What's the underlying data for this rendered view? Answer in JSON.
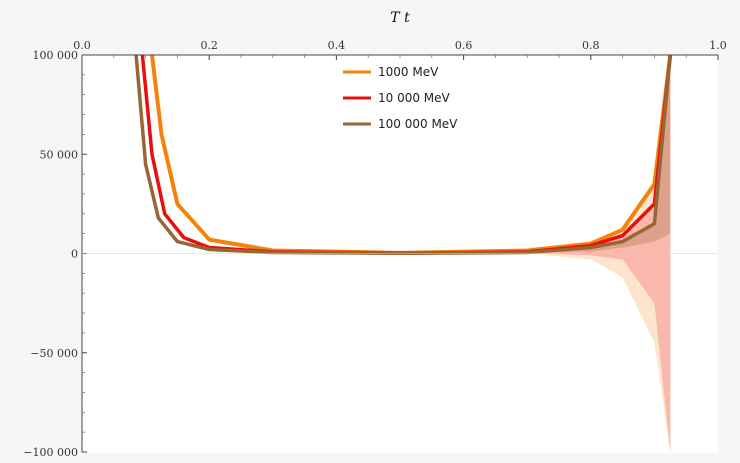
{
  "chart_data": {
    "type": "line",
    "title": "",
    "xlabel": "T t",
    "ylabel": "",
    "xlim": [
      0,
      1
    ],
    "ylim": [
      -100000,
      100000
    ],
    "x_ticks": [
      0.0,
      0.2,
      0.4,
      0.6,
      0.8,
      1.0
    ],
    "x_tick_labels": [
      "0.0",
      "0.2",
      "0.4",
      "0.6",
      "0.8",
      "1.0"
    ],
    "y_ticks": [
      100000,
      50000,
      0,
      -50000,
      -100000
    ],
    "y_tick_labels": [
      "100 000",
      "50 000",
      "0",
      "−50 000",
      "−100 000"
    ],
    "legend_position": "top-center",
    "series": [
      {
        "name": "1000 MeV",
        "color": "#f5820b",
        "band_color": "#fde0c4",
        "x": [
          0.11,
          0.125,
          0.15,
          0.2,
          0.3,
          0.5,
          0.7,
          0.8,
          0.85,
          0.9,
          0.925
        ],
        "values": [
          100000,
          60000,
          25000,
          7000,
          1500,
          300,
          1500,
          5000,
          12000,
          35000,
          100000
        ],
        "band_lower": [
          100000,
          60000,
          25000,
          7000,
          1500,
          300,
          0,
          -3000,
          -12000,
          -45000,
          -100000
        ],
        "band_upper": [
          100000,
          60000,
          25000,
          7000,
          1500,
          300,
          1500,
          5000,
          12000,
          35000,
          100000
        ]
      },
      {
        "name": "10 000 MeV",
        "color": "#e8100f",
        "band_color": "#f9b0a6",
        "x": [
          0.095,
          0.11,
          0.13,
          0.16,
          0.2,
          0.3,
          0.5,
          0.7,
          0.8,
          0.85,
          0.9,
          0.925
        ],
        "values": [
          100000,
          50000,
          20000,
          8000,
          3000,
          800,
          200,
          800,
          4000,
          9000,
          25000,
          100000
        ],
        "band_lower": [
          100000,
          50000,
          20000,
          8000,
          3000,
          800,
          200,
          500,
          -1000,
          -3000,
          -25000,
          -100000
        ],
        "band_upper": [
          100000,
          50000,
          20000,
          8000,
          3000,
          800,
          200,
          800,
          4000,
          9000,
          25000,
          100000
        ]
      },
      {
        "name": "100 000 MeV",
        "color": "#9a6534",
        "band_color": "#d69c84",
        "x": [
          0.085,
          0.1,
          0.12,
          0.15,
          0.2,
          0.3,
          0.5,
          0.7,
          0.8,
          0.85,
          0.9,
          0.925
        ],
        "values": [
          100000,
          45000,
          18000,
          6000,
          2000,
          500,
          100,
          500,
          3000,
          6000,
          15000,
          100000
        ],
        "band_lower": [
          100000,
          45000,
          18000,
          6000,
          2000,
          500,
          100,
          500,
          1000,
          3000,
          6000,
          10000
        ],
        "band_upper": [
          100000,
          45000,
          18000,
          6000,
          2000,
          500,
          100,
          500,
          3000,
          6000,
          15000,
          100000
        ]
      }
    ]
  }
}
